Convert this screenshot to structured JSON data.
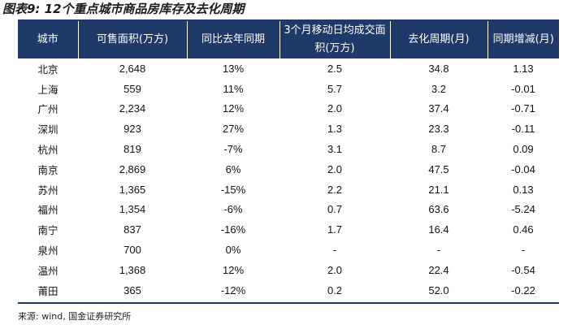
{
  "title": "图表9: 12个重点城市商品房库存及去化周期",
  "table": {
    "headers": [
      "城市",
      "可售面积(万方)",
      "同比去年同期",
      "3个月移动日均成交面积(万方)",
      "去化周期(月)",
      "同期增减(月)"
    ],
    "rows": [
      [
        "北京",
        "2,648",
        "13%",
        "2.5",
        "34.8",
        "1.13"
      ],
      [
        "上海",
        "559",
        "11%",
        "5.7",
        "3.2",
        "-0.01"
      ],
      [
        "广州",
        "2,234",
        "12%",
        "2.0",
        "37.4",
        "-0.71"
      ],
      [
        "深圳",
        "923",
        "27%",
        "1.3",
        "23.3",
        "-0.11"
      ],
      [
        "杭州",
        "819",
        "-7%",
        "3.1",
        "8.7",
        "0.09"
      ],
      [
        "南京",
        "2,869",
        "6%",
        "2.0",
        "47.5",
        "-0.04"
      ],
      [
        "苏州",
        "1,365",
        "-15%",
        "2.2",
        "21.1",
        "0.13"
      ],
      [
        "福州",
        "1,354",
        "-6%",
        "0.7",
        "63.6",
        "-5.24"
      ],
      [
        "南宁",
        "837",
        "-16%",
        "1.7",
        "16.4",
        "0.46"
      ],
      [
        "泉州",
        "700",
        "0%",
        "-",
        "-",
        "-"
      ],
      [
        "温州",
        "1,368",
        "12%",
        "2.0",
        "22.4",
        "-0.54"
      ],
      [
        "莆田",
        "365",
        "-12%",
        "0.2",
        "52.0",
        "-0.22"
      ]
    ]
  },
  "source": "来源: wind, 国金证券研究所"
}
